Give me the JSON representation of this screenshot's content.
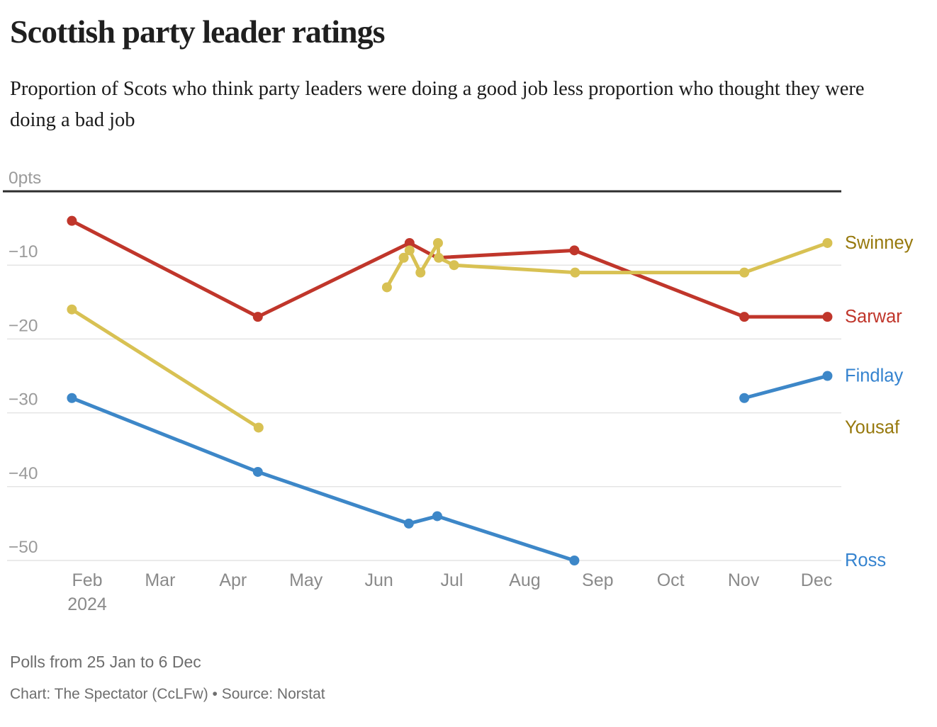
{
  "header": {
    "title": "Scottish party leader ratings",
    "subtitle": "Proportion of Scots who think party leaders were doing a good job less proportion who thought they were doing a bad job"
  },
  "footer": {
    "note": "Polls from 25 Jan to 6 Dec",
    "credit": "Chart: The Spectator (CcLFw) • Source: Norstat"
  },
  "chart_data": {
    "type": "line",
    "title": "Scottish party leader ratings",
    "xlabel": "",
    "ylabel": "pts",
    "x_unit": "month index (Jan 2024 = 0, Feb 2024 = 1, ... Dec 2024 = 11)",
    "x_tick_labels": [
      "Feb",
      "Mar",
      "Apr",
      "May",
      "Jun",
      "Jul",
      "Aug",
      "Sep",
      "Oct",
      "Nov",
      "Dec"
    ],
    "x_tick_sub_label": "2024",
    "y_ticks": [
      0,
      -10,
      -20,
      -30,
      -40,
      -50
    ],
    "y_tick_labels": [
      "0pts",
      "−10",
      "−20",
      "−30",
      "−40",
      "−50"
    ],
    "ylim": [
      -55,
      2
    ],
    "xlim": [
      0.6,
      11.5
    ],
    "grid": "horizontal",
    "legend_position": "right-of-line-ends",
    "colors": {
      "red": "#c0362b",
      "yellow": "#d8c153",
      "blue": "#3d87c8",
      "olive_label": "#97790d",
      "axis_text": "#9b9b9b",
      "grid_line": "#e4e4e4",
      "zero_line": "#2e2e2e"
    },
    "series": [
      {
        "name": "Yousaf",
        "color": "#d8c153",
        "label_color": "#97790d",
        "points": [
          [
            0.79,
            -16
          ],
          [
            3.35,
            -32
          ]
        ]
      },
      {
        "name": "Ross",
        "color": "#3d87c8",
        "label_color": "#3583cf",
        "points": [
          [
            0.79,
            -28
          ],
          [
            3.34,
            -38
          ],
          [
            5.41,
            -45
          ],
          [
            5.8,
            -44
          ],
          [
            7.68,
            -50
          ]
        ]
      },
      {
        "name": "Findlay",
        "color": "#3d87c8",
        "label_color": "#3583cf",
        "points": [
          [
            10.01,
            -28
          ],
          [
            11.15,
            -25
          ]
        ]
      },
      {
        "name": "Sarwar",
        "color": "#c0362b",
        "label_color": "#c0362b",
        "points": [
          [
            0.79,
            -4
          ],
          [
            3.34,
            -17
          ],
          [
            5.42,
            -7
          ],
          [
            5.8,
            -9,
            0
          ],
          [
            7.68,
            -8
          ],
          [
            10.01,
            -17
          ],
          [
            11.15,
            -17
          ]
        ]
      },
      {
        "name": "Swinney",
        "color": "#d8c153",
        "label_color": "#97790d",
        "points": [
          [
            5.11,
            -13
          ],
          [
            5.34,
            -9
          ],
          [
            5.42,
            -8
          ],
          [
            5.57,
            -11
          ],
          [
            5.81,
            -7
          ],
          [
            5.82,
            -9
          ],
          [
            6.03,
            -10
          ],
          [
            7.69,
            -11
          ],
          [
            10.01,
            -11
          ],
          [
            11.15,
            -7
          ]
        ]
      }
    ]
  }
}
